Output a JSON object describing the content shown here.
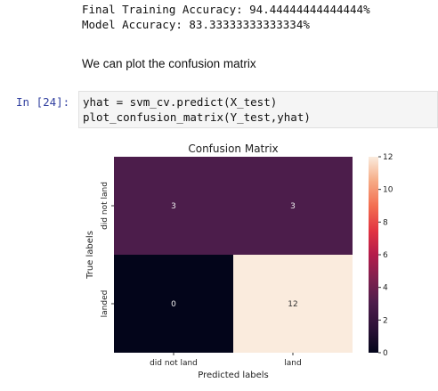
{
  "output": {
    "line1": "Final Training Accuracy: 94.44444444444444%",
    "line2": "Model Accuracy: 83.33333333333334%"
  },
  "markdown": {
    "text": "We can plot the confusion matrix"
  },
  "cell": {
    "prompt": "In [24]:",
    "code_line1": "yhat = svm_cv.predict(X_test)",
    "code_line2": "plot_confusion_matrix(Y_test,yhat)"
  },
  "chart_data": {
    "type": "heatmap",
    "title": "Confusion Matrix",
    "xlabel": "Predicted labels",
    "ylabel": "True labels",
    "x_categories": [
      "did not land",
      "land"
    ],
    "y_categories": [
      "did not land",
      "landed"
    ],
    "values": [
      [
        3,
        3
      ],
      [
        0,
        12
      ]
    ],
    "colorbar": {
      "ticks": [
        0,
        2,
        4,
        6,
        8,
        10,
        12
      ],
      "range": [
        0,
        12
      ]
    },
    "colors": {
      "c0": "#03051a",
      "c3": "#4c1d4b",
      "c12": "#faebdd"
    }
  }
}
